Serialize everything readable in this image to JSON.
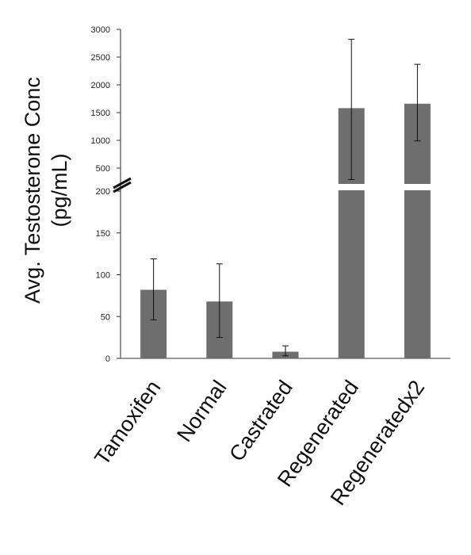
{
  "chart_data": {
    "type": "bar",
    "title": "",
    "xlabel": "",
    "ylabel": "Avg. Testosterone Conc",
    "ylabel_units": "(pg/mL)",
    "axis_break": {
      "lower_max": 200,
      "upper_min": 500
    },
    "lower_ylim": [
      0,
      200
    ],
    "upper_ylim": [
      500,
      3000
    ],
    "lower_ticks": [
      0,
      50,
      100,
      150,
      200
    ],
    "upper_ticks": [
      500,
      1000,
      1500,
      2000,
      2500,
      3000
    ],
    "categories": [
      "Tamoxifen",
      "Normal",
      "Castrated",
      "Regenerated",
      "Regeneratedx2"
    ],
    "values": [
      82,
      68,
      8,
      1580,
      1660
    ],
    "err_low": [
      46,
      25,
      3,
      330,
      990
    ],
    "err_high": [
      119,
      113,
      15,
      2820,
      2370
    ],
    "grid": false,
    "legend": "none"
  }
}
